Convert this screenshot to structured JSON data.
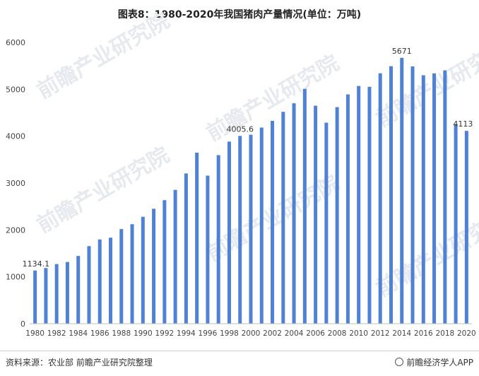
{
  "title": "图表8：1980-2020年我国猪肉产量情况(单位：万吨)",
  "watermark": "前瞻产业研究院",
  "footer": {
    "source": "资料来源：农业部 前瞻产业研究院整理",
    "brand": "前瞻经济学人APP",
    "brand_icon": "qianzhan-logo-icon"
  },
  "colors": {
    "bar": "#4f81d4",
    "axis": "#bfbfbf"
  },
  "chart_data": {
    "type": "bar",
    "title": "图表8：1980-2020年我国猪肉产量情况(单位：万吨)",
    "xlabel": "",
    "ylabel": "",
    "ylim": [
      0,
      6000
    ],
    "yticks": [
      0,
      1000,
      2000,
      3000,
      4000,
      5000,
      6000
    ],
    "grid": false,
    "categories": [
      "1980",
      "1981",
      "1982",
      "1983",
      "1984",
      "1985",
      "1986",
      "1987",
      "1988",
      "1989",
      "1990",
      "1991",
      "1992",
      "1993",
      "1994",
      "1995",
      "1996",
      "1997",
      "1998",
      "1999",
      "2000",
      "2001",
      "2002",
      "2003",
      "2004",
      "2005",
      "2006",
      "2007",
      "2008",
      "2009",
      "2010",
      "2011",
      "2012",
      "2013",
      "2014",
      "2015",
      "2016",
      "2017",
      "2018",
      "2019",
      "2020"
    ],
    "xtick_labels": [
      "1980",
      "1982",
      "1984",
      "1986",
      "1988",
      "1990",
      "1992",
      "1994",
      "1996",
      "1998",
      "2000",
      "2002",
      "2004",
      "2006",
      "2008",
      "2010",
      "2012",
      "2014",
      "2016",
      "2018",
      "2020"
    ],
    "values": [
      1134.1,
      1188,
      1272,
      1316,
      1445,
      1655,
      1797,
      1835,
      2018,
      2123,
      2281,
      2452,
      2635,
      2854,
      3205,
      3648,
      3158,
      3596,
      3884,
      4005.6,
      4031,
      4184,
      4327,
      4519,
      4702,
      5010,
      4650,
      4288,
      4620,
      4891,
      5071,
      5053,
      5342,
      5493,
      5671,
      5487,
      5299,
      5340,
      5404,
      4255,
      4113
    ],
    "data_labels": [
      {
        "category": "1980",
        "text": "1134.1"
      },
      {
        "category": "1999",
        "text": "4005.6"
      },
      {
        "category": "2014",
        "text": "5671"
      },
      {
        "category": "2020",
        "text": "4113"
      }
    ]
  }
}
